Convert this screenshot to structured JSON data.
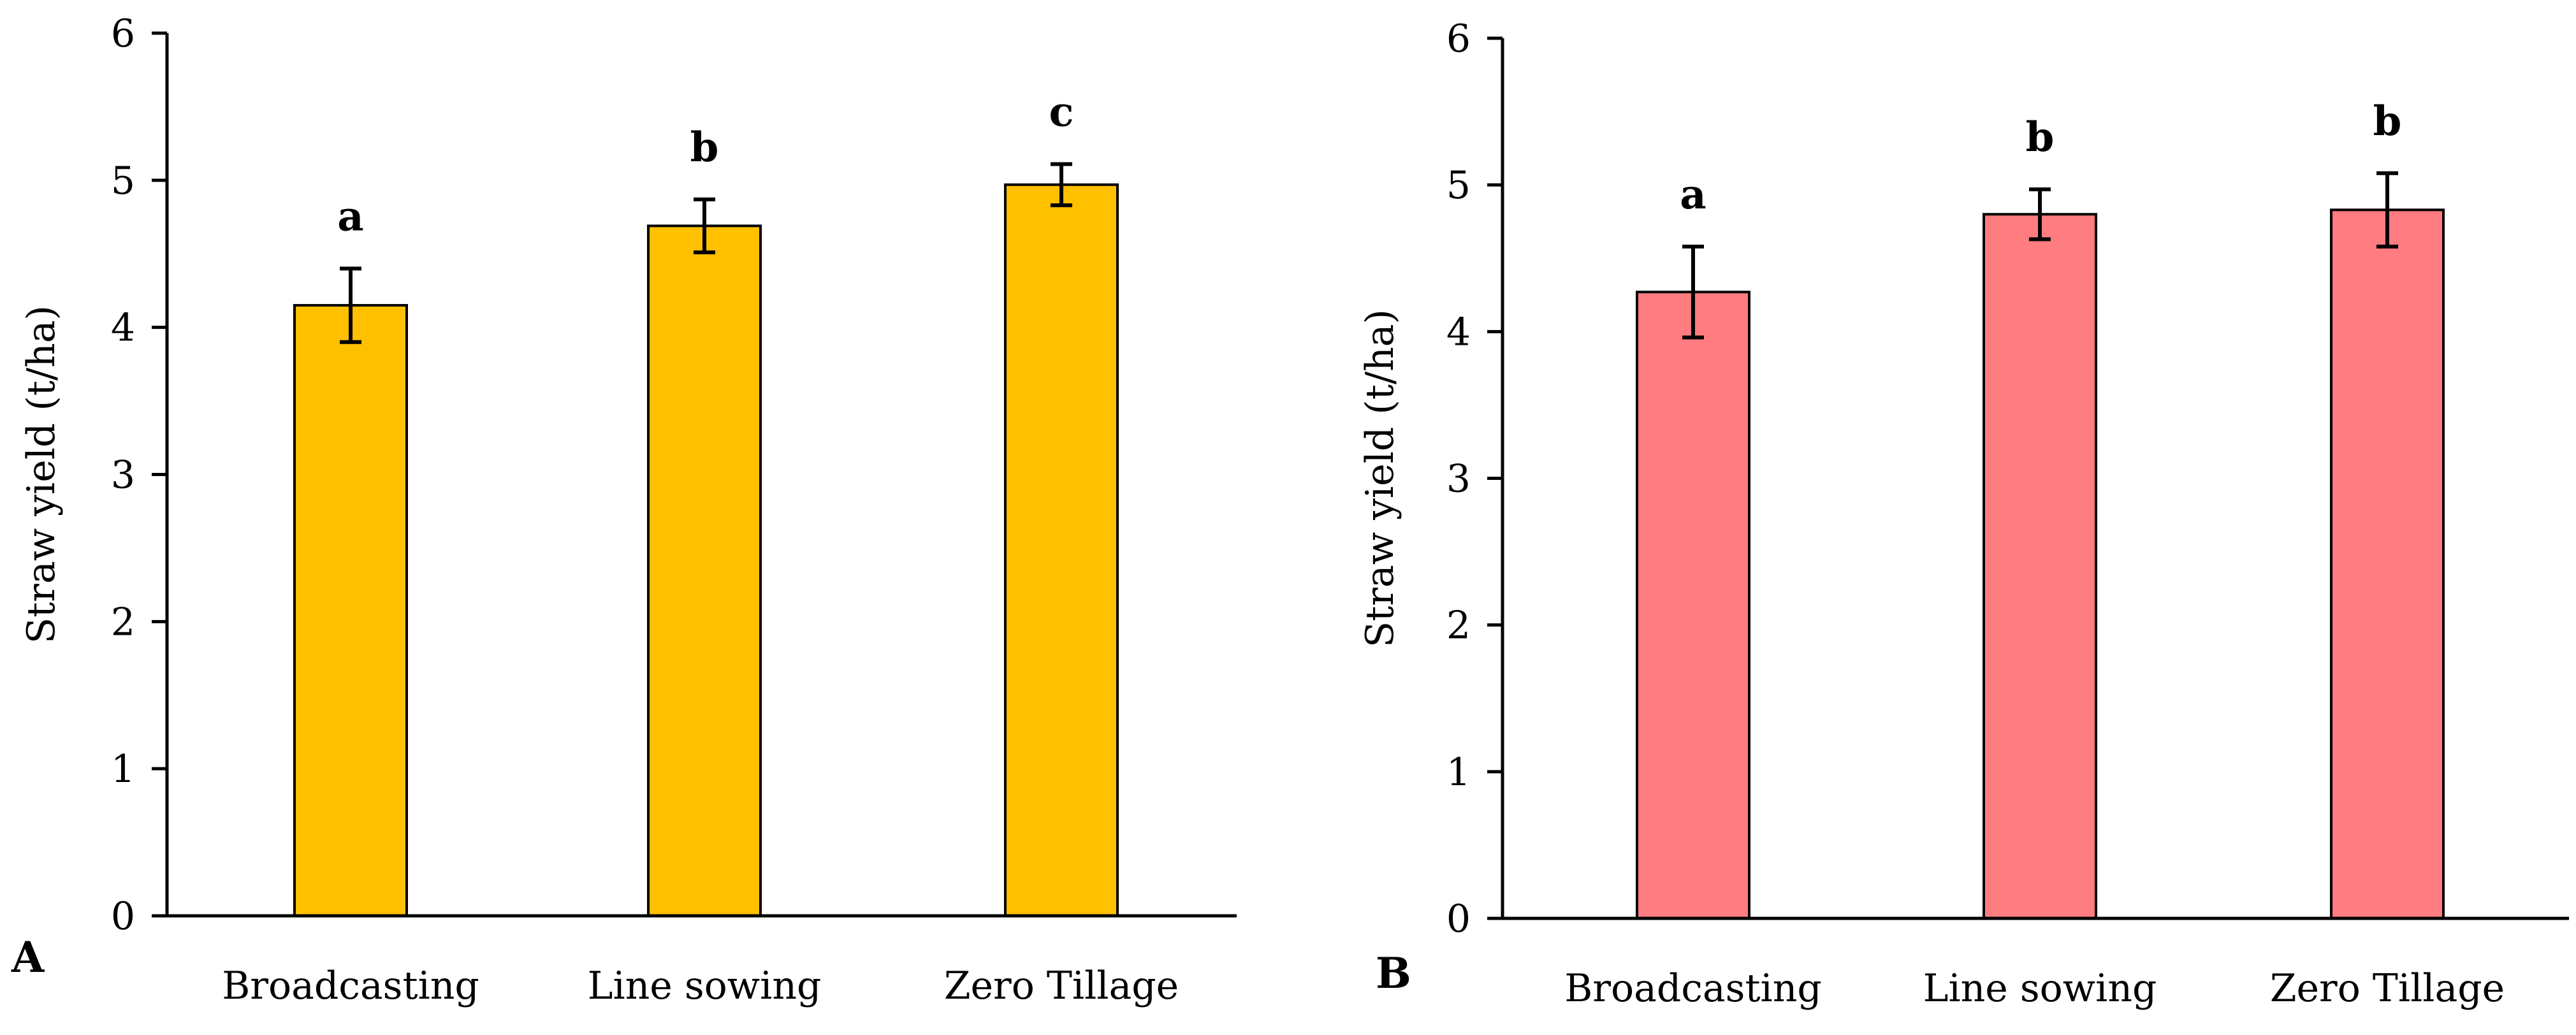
{
  "chart_data": [
    {
      "type": "bar",
      "panel_label": "A",
      "title": "",
      "xlabel": "",
      "ylabel": "Straw yield (t/ha)",
      "ylim": [
        0,
        6
      ],
      "yticks": [
        0,
        1,
        2,
        3,
        4,
        5,
        6
      ],
      "categories": [
        "Broadcasting",
        "Line sowing",
        "Zero Tillage"
      ],
      "values": [
        4.15,
        4.69,
        4.97
      ],
      "errors": [
        0.25,
        0.18,
        0.14
      ],
      "significance_letters": [
        "a",
        "b",
        "c"
      ],
      "bar_color": "#FFC000",
      "grid": false
    },
    {
      "type": "bar",
      "panel_label": "B",
      "title": "",
      "xlabel": "",
      "ylabel": "Straw yield (t/ha)",
      "ylim": [
        0,
        6
      ],
      "yticks": [
        0,
        1,
        2,
        3,
        4,
        5,
        6
      ],
      "categories": [
        "Broadcasting",
        "Line sowing",
        "Zero Tillage"
      ],
      "values": [
        4.27,
        4.8,
        4.83
      ],
      "errors": [
        0.31,
        0.17,
        0.25
      ],
      "significance_letters": [
        "a",
        "b",
        "b"
      ],
      "bar_color": "#FF7C80",
      "grid": false
    }
  ]
}
